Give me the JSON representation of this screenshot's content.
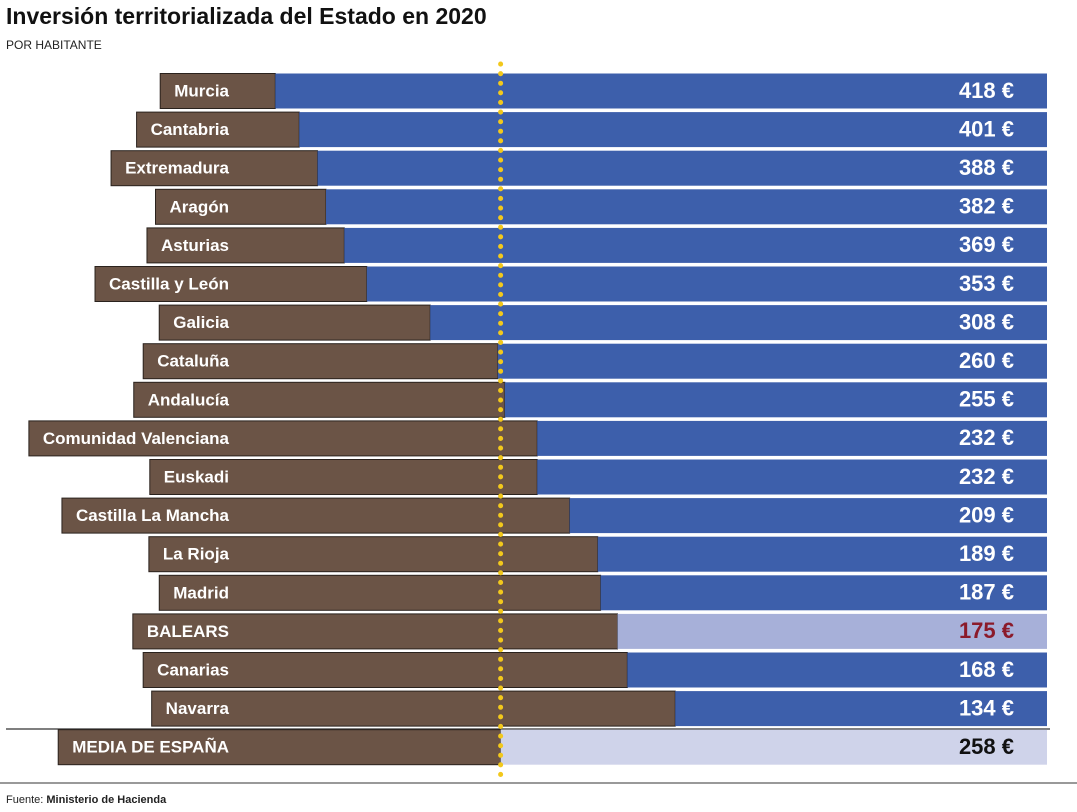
{
  "chart_data": {
    "type": "bar",
    "orientation": "horizontal",
    "title": "Inversión territorializada del Estado en 2020",
    "subtitle": "POR HABITANTE",
    "categories": [
      "Murcia",
      "Cantabria",
      "Extremadura",
      "Aragón",
      "Asturias",
      "Castilla y León",
      "Galicia",
      "Cataluña",
      "Andalucía",
      "Comunidad Valenciana",
      "Euskadi",
      "Castilla La Mancha",
      "La Rioja",
      "Madrid",
      "BALEARS",
      "Canarias",
      "Navarra"
    ],
    "values": [
      418,
      401,
      388,
      382,
      369,
      353,
      308,
      260,
      255,
      232,
      232,
      209,
      189,
      187,
      175,
      168,
      134
    ],
    "value_labels": [
      "418 €",
      "401 €",
      "388 €",
      "382 €",
      "369 €",
      "353 €",
      "308 €",
      "260 €",
      "255 €",
      "232 €",
      "232 €",
      "209 €",
      "189 €",
      "187 €",
      "175 €",
      "168 €",
      "134 €"
    ],
    "colors": [
      "#3d5fab",
      "#3d5fab",
      "#3d5fab",
      "#3d5fab",
      "#3d5fab",
      "#3d5fab",
      "#3d5fab",
      "#3d5fab",
      "#3d5fab",
      "#3d5fab",
      "#3d5fab",
      "#3d5fab",
      "#3d5fab",
      "#3d5fab",
      "#a7b0d9",
      "#3d5fab",
      "#3d5fab"
    ],
    "label_colors": [
      "#ffffff",
      "#ffffff",
      "#ffffff",
      "#ffffff",
      "#ffffff",
      "#ffffff",
      "#ffffff",
      "#ffffff",
      "#ffffff",
      "#ffffff",
      "#ffffff",
      "#ffffff",
      "#ffffff",
      "#ffffff",
      "#8b1a2a",
      "#ffffff",
      "#ffffff"
    ],
    "average": {
      "label": "MEDIA DE ESPAÑA",
      "value": 258,
      "value_label": "258 €",
      "color": "#cfd3ea",
      "label_color": "#111111"
    },
    "xlim": [
      -130,
      480
    ],
    "source": {
      "label": "Fuente:",
      "name": "Ministerio de Hacienda"
    }
  }
}
